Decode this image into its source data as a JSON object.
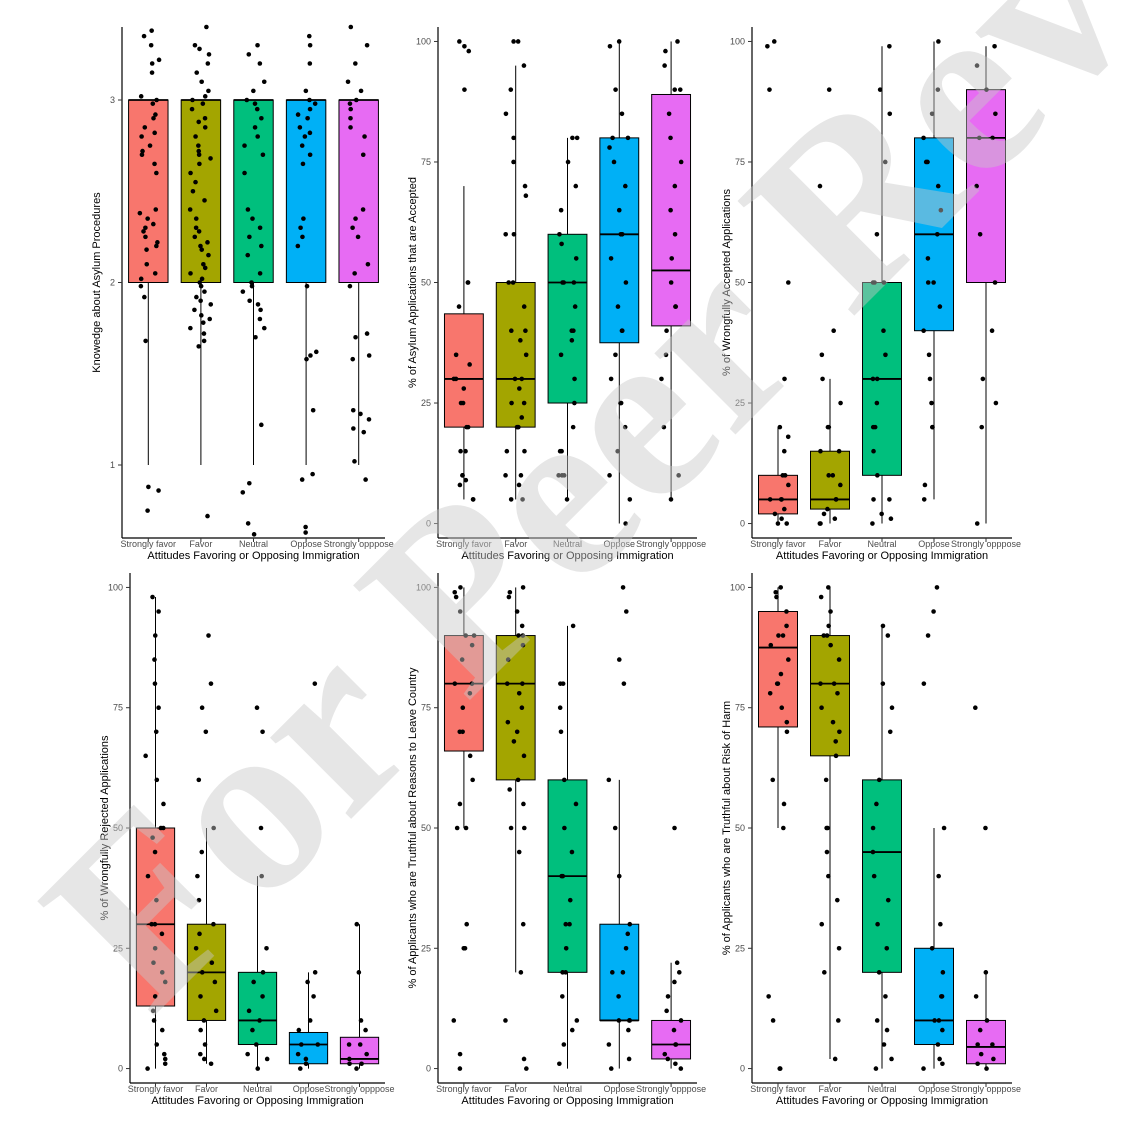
{
  "watermark": {
    "text": "For Peer Review"
  },
  "group_colors": [
    "#F8766D",
    "#A3A500",
    "#00BF7D",
    "#00B0F6",
    "#E76BF3"
  ],
  "chart_data": [
    {
      "type": "box",
      "xlabel": "Attitudes Favoring or Opposing Immigration",
      "ylabel": "Knowedge about Asylum Procedures",
      "categories": [
        "Strongly favor",
        "Favor",
        "Neutral",
        "Oppose",
        "Strongly opppose"
      ],
      "ylim": [
        0.6,
        3.4
      ],
      "yticks": [
        1,
        2,
        3
      ],
      "boxes": [
        {
          "q1": 2,
          "median": 3,
          "q3": 3,
          "lower": 1,
          "upper": 3
        },
        {
          "q1": 2,
          "median": 3,
          "q3": 3,
          "lower": 1,
          "upper": 3
        },
        {
          "q1": 2,
          "median": 3,
          "q3": 3,
          "lower": 1,
          "upper": 3
        },
        {
          "q1": 2,
          "median": 3,
          "q3": 3,
          "lower": 1,
          "upper": 3
        },
        {
          "q1": 2,
          "median": 3,
          "q3": 3,
          "lower": 1,
          "upper": 3
        }
      ],
      "points": [
        [
          3.38,
          3.35,
          3.3,
          3.22,
          3.2,
          3.15,
          3.02,
          3.0,
          2.98,
          2.92,
          2.9,
          2.85,
          2.82,
          2.8,
          2.75,
          2.72,
          2.7,
          2.65,
          2.6,
          2.4,
          2.38,
          2.35,
          2.32,
          2.3,
          2.28,
          2.25,
          2.22,
          2.2,
          2.18,
          2.1,
          2.05,
          2.02,
          1.98,
          1.92,
          1.68,
          0.88,
          0.86,
          0.75
        ],
        [
          3.4,
          3.3,
          3.28,
          3.25,
          3.2,
          3.15,
          3.1,
          3.05,
          3.02,
          3.0,
          2.98,
          2.95,
          2.9,
          2.88,
          2.85,
          2.8,
          2.75,
          2.72,
          2.7,
          2.68,
          2.65,
          2.6,
          2.55,
          2.5,
          2.45,
          2.4,
          2.35,
          2.3,
          2.28,
          2.25,
          2.22,
          2.2,
          2.18,
          2.15,
          2.1,
          2.08,
          2.05,
          2.02,
          2.0,
          1.98,
          1.95,
          1.92,
          1.9,
          1.88,
          1.85,
          1.82,
          1.8,
          1.78,
          1.75,
          1.72,
          1.68,
          1.65,
          0.72
        ],
        [
          3.3,
          3.25,
          3.2,
          3.1,
          3.05,
          3.0,
          2.98,
          2.95,
          2.9,
          2.85,
          2.8,
          2.75,
          2.7,
          2.6,
          2.4,
          2.35,
          2.3,
          2.25,
          2.2,
          2.15,
          2.05,
          2.0,
          1.98,
          1.95,
          1.9,
          1.88,
          1.85,
          1.8,
          1.75,
          1.7,
          1.22,
          0.9,
          0.85,
          0.68,
          0.62
        ],
        [
          3.35,
          3.3,
          3.2,
          3.05,
          3.0,
          2.98,
          2.95,
          2.92,
          2.9,
          2.85,
          2.82,
          2.8,
          2.75,
          2.7,
          2.65,
          2.35,
          2.3,
          2.25,
          2.2,
          1.98,
          1.62,
          1.6,
          1.58,
          1.3,
          0.95,
          0.92,
          0.66,
          0.63
        ],
        [
          3.4,
          3.3,
          3.2,
          3.1,
          3.05,
          3.0,
          2.98,
          2.95,
          2.9,
          2.85,
          2.8,
          2.7,
          2.4,
          2.35,
          2.3,
          2.25,
          2.1,
          2.05,
          1.98,
          1.72,
          1.7,
          1.6,
          1.58,
          1.3,
          1.28,
          1.25,
          1.2,
          1.18,
          1.02,
          0.92
        ]
      ]
    },
    {
      "type": "box",
      "xlabel": "Attitudes Favoring or Opposing Immigration",
      "ylabel": "% of Asylum Applications that are Accepted",
      "categories": [
        "Strongly favor",
        "Favor",
        "Neutral",
        "Oppose",
        "Strongly opppose"
      ],
      "ylim": [
        -3,
        103
      ],
      "yticks": [
        0,
        25,
        50,
        75,
        100
      ],
      "boxes": [
        {
          "q1": 20,
          "median": 30,
          "q3": 43.5,
          "lower": 5,
          "upper": 70
        },
        {
          "q1": 20,
          "median": 30,
          "q3": 50,
          "lower": 5,
          "upper": 95
        },
        {
          "q1": 25,
          "median": 50,
          "q3": 60,
          "lower": 5,
          "upper": 80
        },
        {
          "q1": 37.5,
          "median": 60,
          "q3": 80,
          "lower": 0,
          "upper": 100
        },
        {
          "q1": 41,
          "median": 52.5,
          "q3": 89,
          "lower": 5,
          "upper": 100
        }
      ],
      "points": [
        [
          100,
          99,
          98,
          90,
          50,
          50,
          45,
          35,
          33,
          30,
          30,
          28,
          25,
          25,
          20,
          20,
          15,
          15,
          10,
          10,
          9,
          8,
          5,
          5
        ],
        [
          100,
          100,
          95,
          90,
          85,
          80,
          75,
          70,
          68,
          60,
          60,
          50,
          50,
          45,
          40,
          40,
          38,
          35,
          30,
          30,
          28,
          25,
          25,
          22,
          20,
          20,
          20,
          15,
          15,
          10,
          10,
          8,
          5,
          5
        ],
        [
          80,
          80,
          75,
          70,
          65,
          60,
          58,
          55,
          50,
          50,
          50,
          45,
          40,
          40,
          38,
          35,
          30,
          25,
          20,
          15,
          15,
          10,
          10,
          10,
          5
        ],
        [
          100,
          99,
          90,
          85,
          80,
          80,
          78,
          75,
          70,
          65,
          60,
          60,
          55,
          50,
          45,
          40,
          40,
          35,
          30,
          25,
          25,
          20,
          15,
          10,
          5,
          0
        ],
        [
          100,
          98,
          95,
          90,
          90,
          85,
          80,
          75,
          70,
          65,
          60,
          55,
          50,
          45,
          45,
          40,
          35,
          30,
          20,
          10,
          5
        ]
      ]
    },
    {
      "type": "box",
      "xlabel": "Attitudes Favoring or Opposing Immigration",
      "ylabel": "% of Wrongfully Accepted Applications",
      "categories": [
        "Strongly favor",
        "Favor",
        "Neutral",
        "Oppose",
        "Strongly opppose"
      ],
      "ylim": [
        -3,
        103
      ],
      "yticks": [
        0,
        25,
        50,
        75,
        100
      ],
      "boxes": [
        {
          "q1": 2,
          "median": 5,
          "q3": 10,
          "lower": 0,
          "upper": 20
        },
        {
          "q1": 3,
          "median": 5,
          "q3": 15,
          "lower": 0,
          "upper": 30
        },
        {
          "q1": 10,
          "median": 30,
          "q3": 50,
          "lower": 0,
          "upper": 99
        },
        {
          "q1": 40,
          "median": 60,
          "q3": 80,
          "lower": 5,
          "upper": 100
        },
        {
          "q1": 50,
          "median": 80,
          "q3": 90,
          "lower": 0,
          "upper": 99
        }
      ],
      "points": [
        [
          100,
          99,
          90,
          50,
          30,
          20,
          18,
          15,
          10,
          10,
          8,
          5,
          5,
          5,
          3,
          2,
          1,
          0,
          0
        ],
        [
          90,
          70,
          40,
          35,
          30,
          25,
          20,
          20,
          15,
          15,
          10,
          10,
          8,
          5,
          5,
          3,
          2,
          1,
          0,
          0
        ],
        [
          99,
          90,
          85,
          75,
          60,
          50,
          50,
          50,
          40,
          35,
          30,
          30,
          25,
          20,
          20,
          15,
          10,
          5,
          5,
          2,
          1,
          0
        ],
        [
          100,
          90,
          85,
          80,
          75,
          75,
          70,
          65,
          60,
          55,
          50,
          50,
          45,
          40,
          35,
          30,
          25,
          20,
          20,
          8,
          5
        ],
        [
          99,
          95,
          90,
          85,
          80,
          80,
          70,
          60,
          50,
          40,
          30,
          25,
          20,
          0
        ]
      ]
    },
    {
      "type": "box",
      "xlabel": "Attitudes Favoring or Opposing Immigration",
      "ylabel": "% of Wrongfully Rejected Applications",
      "categories": [
        "Strongly favor",
        "Favor",
        "Neutral",
        "Oppose",
        "Strongly opppose"
      ],
      "ylim": [
        -3,
        103
      ],
      "yticks": [
        0,
        25,
        50,
        75,
        100
      ],
      "boxes": [
        {
          "q1": 13,
          "median": 30,
          "q3": 50,
          "lower": 0,
          "upper": 98
        },
        {
          "q1": 10,
          "median": 20,
          "q3": 30,
          "lower": 1,
          "upper": 50
        },
        {
          "q1": 5,
          "median": 10,
          "q3": 20,
          "lower": 0,
          "upper": 40
        },
        {
          "q1": 1,
          "median": 5,
          "q3": 7.5,
          "lower": 0,
          "upper": 20
        },
        {
          "q1": 1,
          "median": 2,
          "q3": 6.5,
          "lower": 0,
          "upper": 30
        }
      ],
      "points": [
        [
          98,
          95,
          90,
          85,
          80,
          75,
          70,
          65,
          60,
          55,
          50,
          50,
          48,
          45,
          40,
          35,
          30,
          30,
          28,
          25,
          22,
          20,
          18,
          15,
          12,
          10,
          8,
          5,
          3,
          2,
          1,
          0
        ],
        [
          90,
          80,
          75,
          70,
          60,
          50,
          45,
          40,
          35,
          30,
          28,
          25,
          22,
          20,
          18,
          15,
          12,
          10,
          8,
          5,
          3,
          2,
          1
        ],
        [
          75,
          70,
          50,
          40,
          25,
          20,
          18,
          15,
          12,
          10,
          8,
          5,
          3,
          2,
          0
        ],
        [
          80,
          20,
          18,
          15,
          10,
          8,
          5,
          5,
          3,
          2,
          1,
          0
        ],
        [
          30,
          20,
          10,
          8,
          5,
          5,
          3,
          2,
          1,
          1,
          0
        ]
      ]
    },
    {
      "type": "box",
      "xlabel": "Attitudes Favoring or Opposing Immigration",
      "ylabel": "% of Applicants who are Truthful about Reasons to Leave Country",
      "categories": [
        "Strongly favor",
        "Favor",
        "Neutral",
        "Oppose",
        "Strongly opppose"
      ],
      "ylim": [
        -3,
        103
      ],
      "yticks": [
        0,
        25,
        50,
        75,
        100
      ],
      "boxes": [
        {
          "q1": 66,
          "median": 80,
          "q3": 90,
          "lower": 50,
          "upper": 100
        },
        {
          "q1": 60,
          "median": 80,
          "q3": 90,
          "lower": 20,
          "upper": 100
        },
        {
          "q1": 20,
          "median": 40,
          "q3": 60,
          "lower": 0,
          "upper": 92
        },
        {
          "q1": 10,
          "median": 10,
          "q3": 30,
          "lower": 0,
          "upper": 60
        },
        {
          "q1": 2,
          "median": 5,
          "q3": 10,
          "lower": 0,
          "upper": 22
        }
      ],
      "points": [
        [
          100,
          99,
          98,
          95,
          90,
          90,
          88,
          85,
          80,
          80,
          78,
          75,
          70,
          70,
          65,
          60,
          55,
          50,
          50,
          30,
          25,
          25,
          10,
          3,
          0
        ],
        [
          100,
          99,
          98,
          95,
          92,
          90,
          90,
          88,
          85,
          80,
          80,
          78,
          75,
          72,
          70,
          68,
          65,
          60,
          58,
          55,
          50,
          50,
          45,
          30,
          20,
          10,
          2,
          0
        ],
        [
          92,
          80,
          80,
          75,
          70,
          60,
          55,
          50,
          45,
          40,
          40,
          35,
          30,
          30,
          25,
          20,
          20,
          15,
          10,
          8,
          5,
          1
        ],
        [
          100,
          95,
          85,
          80,
          60,
          50,
          40,
          30,
          28,
          25,
          20,
          20,
          15,
          10,
          10,
          10,
          8,
          5,
          2,
          0
        ],
        [
          50,
          22,
          20,
          18,
          15,
          12,
          10,
          8,
          5,
          5,
          3,
          2,
          1,
          0
        ]
      ]
    },
    {
      "type": "box",
      "xlabel": "Attitudes Favoring or Opposing Immigration",
      "ylabel": "% of Applicants who are Truthful about Risk of Harm",
      "categories": [
        "Strongly favor",
        "Favor",
        "Neutral",
        "Oppose",
        "Strongly opppose"
      ],
      "ylim": [
        -3,
        103
      ],
      "yticks": [
        0,
        25,
        50,
        75,
        100
      ],
      "boxes": [
        {
          "q1": 71,
          "median": 87.5,
          "q3": 95,
          "lower": 50,
          "upper": 100
        },
        {
          "q1": 65,
          "median": 80,
          "q3": 90,
          "lower": 2,
          "upper": 100
        },
        {
          "q1": 20,
          "median": 45,
          "q3": 60,
          "lower": 0,
          "upper": 92
        },
        {
          "q1": 5,
          "median": 10,
          "q3": 25,
          "lower": 0,
          "upper": 50
        },
        {
          "q1": 1,
          "median": 4.5,
          "q3": 10,
          "lower": 0,
          "upper": 20
        }
      ],
      "points": [
        [
          100,
          99,
          98,
          95,
          92,
          90,
          90,
          88,
          85,
          82,
          80,
          80,
          78,
          75,
          72,
          70,
          60,
          55,
          50,
          15,
          10,
          0,
          0
        ],
        [
          100,
          98,
          95,
          92,
          90,
          90,
          88,
          85,
          80,
          80,
          78,
          75,
          72,
          70,
          68,
          65,
          60,
          50,
          50,
          45,
          40,
          35,
          30,
          25,
          20,
          10,
          2
        ],
        [
          92,
          90,
          80,
          75,
          70,
          60,
          55,
          50,
          45,
          40,
          35,
          30,
          25,
          20,
          15,
          10,
          8,
          5,
          2,
          0
        ],
        [
          100,
          95,
          90,
          80,
          50,
          40,
          30,
          25,
          20,
          15,
          15,
          10,
          10,
          8,
          5,
          2,
          1,
          0
        ],
        [
          75,
          50,
          20,
          15,
          10,
          8,
          5,
          5,
          3,
          2,
          1,
          0
        ]
      ]
    }
  ]
}
